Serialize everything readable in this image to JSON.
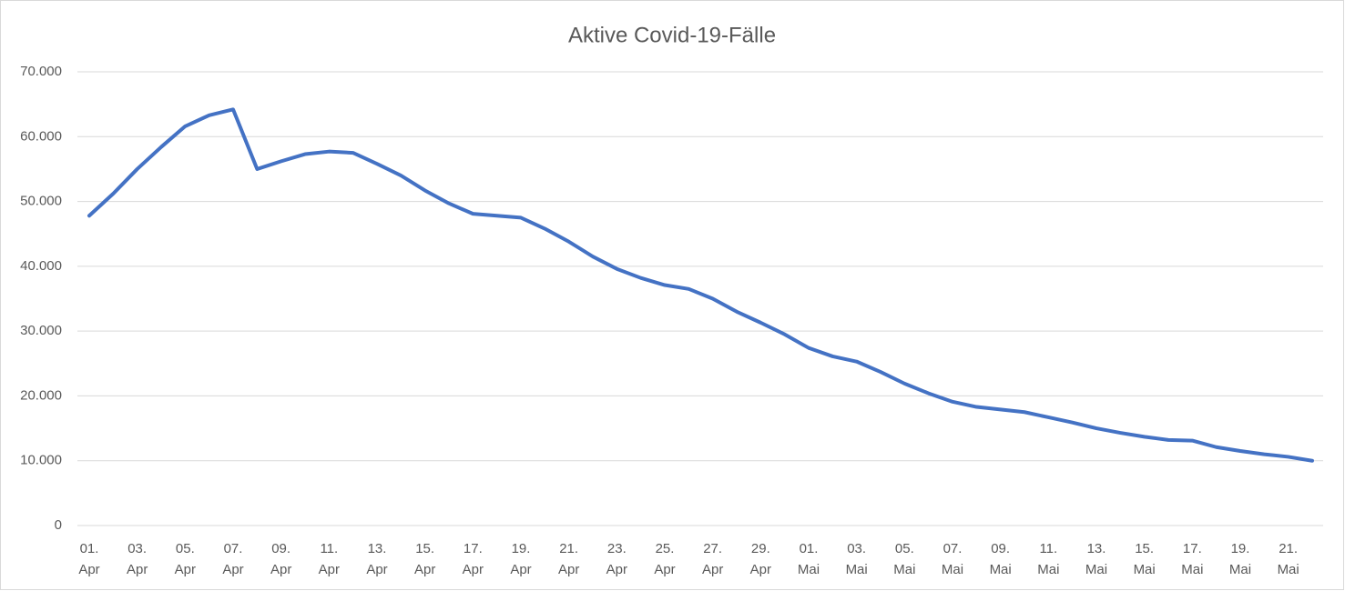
{
  "chart_data": {
    "type": "line",
    "title": "Aktive Covid-19-Fälle",
    "categories": [
      "01. Apr",
      null,
      "03. Apr",
      null,
      "05. Apr",
      null,
      "07. Apr",
      null,
      "09. Apr",
      null,
      "11. Apr",
      null,
      "13. Apr",
      null,
      "15. Apr",
      null,
      "17. Apr",
      null,
      "19. Apr",
      null,
      "21. Apr",
      null,
      "23. Apr",
      null,
      "25. Apr",
      null,
      "27. Apr",
      null,
      "29. Apr",
      null,
      "01. Mai",
      null,
      "03. Mai",
      null,
      "05. Mai",
      null,
      "07. Mai",
      null,
      "09. Mai",
      null,
      "11. Mai",
      null,
      "13. Mai",
      null,
      "15. Mai",
      null,
      "17. Mai",
      null,
      "19. Mai",
      null,
      "21. Mai",
      null
    ],
    "series": [
      {
        "color": "#4472c4",
        "values": [
          47800,
          51200,
          55000,
          58400,
          61600,
          63300,
          64200,
          55000,
          56200,
          57300,
          57700,
          57500,
          55800,
          54000,
          51700,
          49700,
          48100,
          47800,
          47500,
          45800,
          43800,
          41500,
          39600,
          38200,
          37100,
          36500,
          35000,
          33000,
          31300,
          29500,
          27400,
          26100,
          25300,
          23700,
          21900,
          20400,
          19100,
          18300,
          17900,
          17500,
          16700,
          15900,
          15000,
          14300,
          13700,
          13200,
          13100,
          12100,
          11500,
          11000,
          10600,
          10000
        ]
      }
    ],
    "ylim": [
      0,
      70000
    ],
    "yticks": [
      0,
      {
        "value": 10000,
        "label": "10.000"
      },
      {
        "value": 20000,
        "label": "20.000"
      },
      {
        "value": 30000,
        "label": "30.000"
      },
      {
        "value": 40000,
        "label": "40.000"
      },
      {
        "value": 50000,
        "label": "50.000"
      },
      {
        "value": 60000,
        "label": "60.000"
      },
      {
        "value": 70000,
        "label": "70.000"
      }
    ],
    "grid": true
  }
}
